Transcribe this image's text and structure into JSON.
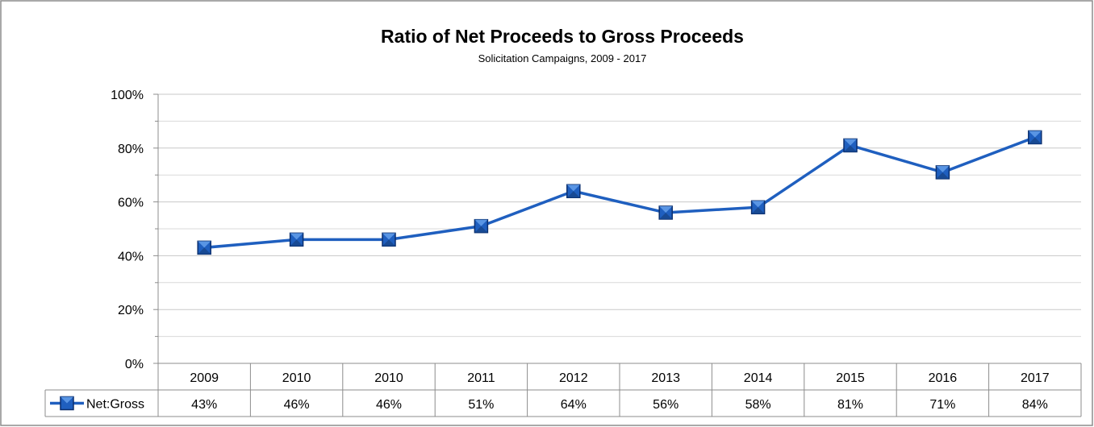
{
  "chart_data": {
    "type": "line",
    "title": "Ratio of Net Proceeds to Gross Proceeds",
    "subtitle": "Solicitation Campaigns, 2009 - 2017",
    "categories": [
      "2009",
      "2010",
      "2010",
      "2011",
      "2012",
      "2013",
      "2014",
      "2015",
      "2016",
      "2017"
    ],
    "series": [
      {
        "name": "Net:Gross",
        "values": [
          43,
          46,
          46,
          51,
          64,
          56,
          58,
          81,
          71,
          84
        ],
        "labels": [
          "43%",
          "46%",
          "46%",
          "51%",
          "64%",
          "56%",
          "58%",
          "81%",
          "71%",
          "84%"
        ],
        "color": "#1F5FBF",
        "marker": "square"
      }
    ],
    "ylim": [
      0,
      100
    ],
    "yticks": [
      0,
      20,
      40,
      60,
      80,
      100
    ],
    "ytick_labels": [
      "0%",
      "20%",
      "40%",
      "60%",
      "80%",
      "100%"
    ],
    "grid": true,
    "legend": "data-table"
  }
}
